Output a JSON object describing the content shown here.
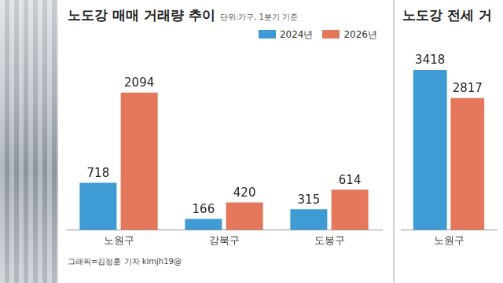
{
  "chart_data": [
    {
      "type": "bar",
      "title": "노도강 매매 거래량 추이",
      "subtitle": "단위:가구, 1분기 기준",
      "categories": [
        "노원구",
        "강북구",
        "도봉구"
      ],
      "series": [
        {
          "name": "2024년",
          "color": "#3f9bd3",
          "values": [
            718,
            166,
            315
          ]
        },
        {
          "name": "2026년",
          "color": "#e4775c",
          "values": [
            2094,
            420,
            614
          ]
        }
      ],
      "legend": "top",
      "data_labels": true,
      "tick_labels": "x",
      "grid": false,
      "annotations": [
        "그래픽=김정훈 기자 kimjh19@"
      ]
    },
    {
      "type": "bar",
      "title": "노도강 전세 거",
      "categories": [
        "노원구"
      ],
      "series": [
        {
          "color": "#3f9bd3",
          "values": [
            3418
          ]
        },
        {
          "color": "#e4775c",
          "values": [
            2817
          ]
        }
      ],
      "data_labels": true,
      "tick_labels": "x",
      "grid": false
    }
  ]
}
